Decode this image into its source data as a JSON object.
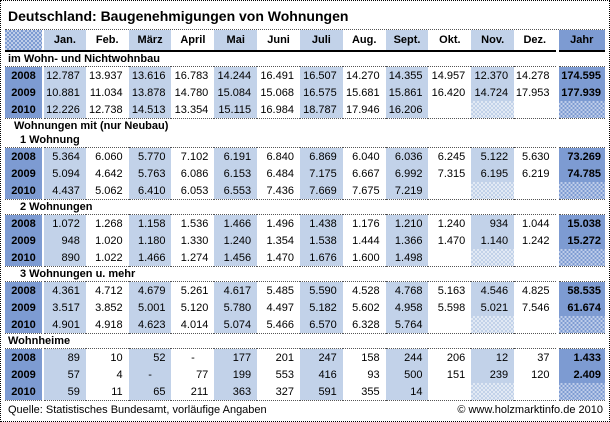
{
  "chart_data": {
    "type": "table",
    "title": "Deutschland: Baugenehmigungen von Wohnungen",
    "corner_label": "",
    "month_labels": [
      "Jan.",
      "Feb.",
      "März",
      "April",
      "Mai",
      "Juni",
      "Juli",
      "Aug.",
      "Sept.",
      "Okt.",
      "Nov.",
      "Dez."
    ],
    "total_label": "Jahr",
    "sections": [
      {
        "labels": [
          {
            "text": "im Wohn- und Nichtwohnbau",
            "indent": 0
          }
        ],
        "rows": [
          {
            "year": "2008",
            "months": [
              "12.787",
              "13.937",
              "13.616",
              "16.783",
              "14.244",
              "16.491",
              "16.507",
              "14.270",
              "14.355",
              "14.957",
              "12.370",
              "14.278"
            ],
            "jahr": "174.595"
          },
          {
            "year": "2009",
            "months": [
              "10.881",
              "11.034",
              "13.878",
              "14.780",
              "15.084",
              "15.068",
              "16.575",
              "15.681",
              "15.861",
              "16.420",
              "14.724",
              "17.953"
            ],
            "jahr": "177.939"
          },
          {
            "year": "2010",
            "months": [
              "12.226",
              "12.738",
              "14.513",
              "13.354",
              "15.115",
              "16.984",
              "18.787",
              "17.946",
              "16.206"
            ],
            "jahr": ""
          }
        ]
      },
      {
        "labels": [
          {
            "text": "Wohnungen mit (nur Neubau)",
            "indent": 1
          },
          {
            "text": "1 Wohnung",
            "indent": 2
          }
        ],
        "rows": [
          {
            "year": "2008",
            "months": [
              "5.364",
              "6.060",
              "5.770",
              "7.102",
              "6.191",
              "6.840",
              "6.869",
              "6.040",
              "6.036",
              "6.245",
              "5.122",
              "5.630"
            ],
            "jahr": "73.269"
          },
          {
            "year": "2009",
            "months": [
              "5.094",
              "4.642",
              "5.763",
              "6.086",
              "6.153",
              "6.484",
              "7.175",
              "6.667",
              "6.992",
              "7.315",
              "6.195",
              "6.219"
            ],
            "jahr": "74.785"
          },
          {
            "year": "2010",
            "months": [
              "4.437",
              "5.062",
              "6.410",
              "6.053",
              "6.553",
              "7.436",
              "7.669",
              "7.675",
              "7.219"
            ],
            "jahr": ""
          }
        ]
      },
      {
        "labels": [
          {
            "text": "2 Wohnungen",
            "indent": 2
          }
        ],
        "rows": [
          {
            "year": "2008",
            "months": [
              "1.072",
              "1.268",
              "1.158",
              "1.536",
              "1.466",
              "1.496",
              "1.438",
              "1.176",
              "1.210",
              "1.240",
              "934",
              "1.044"
            ],
            "jahr": "15.038"
          },
          {
            "year": "2009",
            "months": [
              "948",
              "1.020",
              "1.180",
              "1.330",
              "1.240",
              "1.354",
              "1.538",
              "1.444",
              "1.366",
              "1.470",
              "1.140",
              "1.242"
            ],
            "jahr": "15.272"
          },
          {
            "year": "2010",
            "months": [
              "890",
              "1.022",
              "1.466",
              "1.274",
              "1.456",
              "1.470",
              "1.676",
              "1.600",
              "1.498"
            ],
            "jahr": ""
          }
        ]
      },
      {
        "labels": [
          {
            "text": "3 Wohnungen u. mehr",
            "indent": 2
          }
        ],
        "rows": [
          {
            "year": "2008",
            "months": [
              "4.361",
              "4.712",
              "4.679",
              "5.261",
              "4.617",
              "5.485",
              "5.590",
              "4.528",
              "4.768",
              "5.163",
              "4.546",
              "4.825"
            ],
            "jahr": "58.535"
          },
          {
            "year": "2009",
            "months": [
              "3.517",
              "3.852",
              "5.001",
              "5.120",
              "5.780",
              "4.497",
              "5.182",
              "5.602",
              "4.958",
              "5.598",
              "5.021",
              "7.546"
            ],
            "jahr": "61.674"
          },
          {
            "year": "2010",
            "months": [
              "4.901",
              "4.918",
              "4.623",
              "4.014",
              "5.074",
              "5.466",
              "6.570",
              "6.328",
              "5.764"
            ],
            "jahr": ""
          }
        ]
      },
      {
        "labels": [
          {
            "text": "Wohnheime",
            "indent": 0
          }
        ],
        "rows": [
          {
            "year": "2008",
            "months": [
              "89",
              "10",
              "52",
              "-",
              "177",
              "201",
              "247",
              "158",
              "244",
              "206",
              "12",
              "37"
            ],
            "jahr": "1.433"
          },
          {
            "year": "2009",
            "months": [
              "57",
              "4",
              "-",
              "77",
              "199",
              "553",
              "416",
              "93",
              "500",
              "151",
              "239",
              "120"
            ],
            "jahr": "2.409"
          },
          {
            "year": "2010",
            "months": [
              "59",
              "11",
              "65",
              "211",
              "363",
              "327",
              "591",
              "355",
              "14"
            ],
            "jahr": ""
          }
        ]
      }
    ]
  },
  "footer": {
    "source": "Quelle: Statistisches Bundesamt, vorläufige Angaben",
    "copyright": "© www.holzmarktinfo.de 2010"
  },
  "colors": {
    "medium_blue": "#7d9bd2",
    "light_blue": "#c2d2e9",
    "border": "#000000"
  }
}
